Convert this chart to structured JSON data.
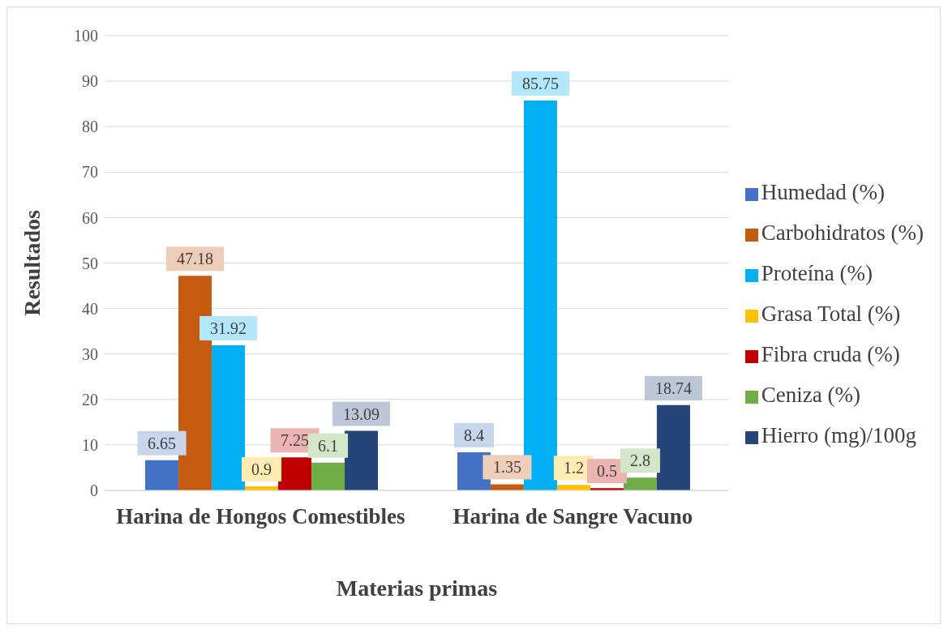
{
  "chart_data": {
    "type": "bar",
    "xlabel": "Materias primas",
    "ylabel": "Resultados",
    "categories": [
      "Harina de Hongos Comestibles",
      "Harina de Sangre Vacuno"
    ],
    "series": [
      {
        "name": "Humedad (%)",
        "color": "#4472c4",
        "values": [
          6.65,
          8.4
        ]
      },
      {
        "name": "Carbohidratos (%)",
        "color": "#c55a11",
        "values": [
          47.18,
          1.35
        ]
      },
      {
        "name": "Proteína (%)",
        "color": "#00b0f0",
        "values": [
          31.92,
          85.75
        ]
      },
      {
        "name": "Grasa Total (%)",
        "color": "#ffc000",
        "values": [
          0.9,
          1.2
        ]
      },
      {
        "name": "Fibra cruda (%)",
        "color": "#c00000",
        "values": [
          7.25,
          0.5
        ]
      },
      {
        "name": "Ceniza (%)",
        "color": "#70ad47",
        "values": [
          6.1,
          2.8
        ]
      },
      {
        "name": "Hierro (mg)/100g",
        "color": "#264478",
        "values": [
          13.09,
          18.74
        ]
      }
    ],
    "ylim": [
      0,
      100
    ],
    "yticks": [
      0,
      10,
      20,
      30,
      40,
      50,
      60,
      70,
      80,
      90,
      100
    ],
    "grid": "y",
    "legend": "right",
    "data_labels": true
  }
}
